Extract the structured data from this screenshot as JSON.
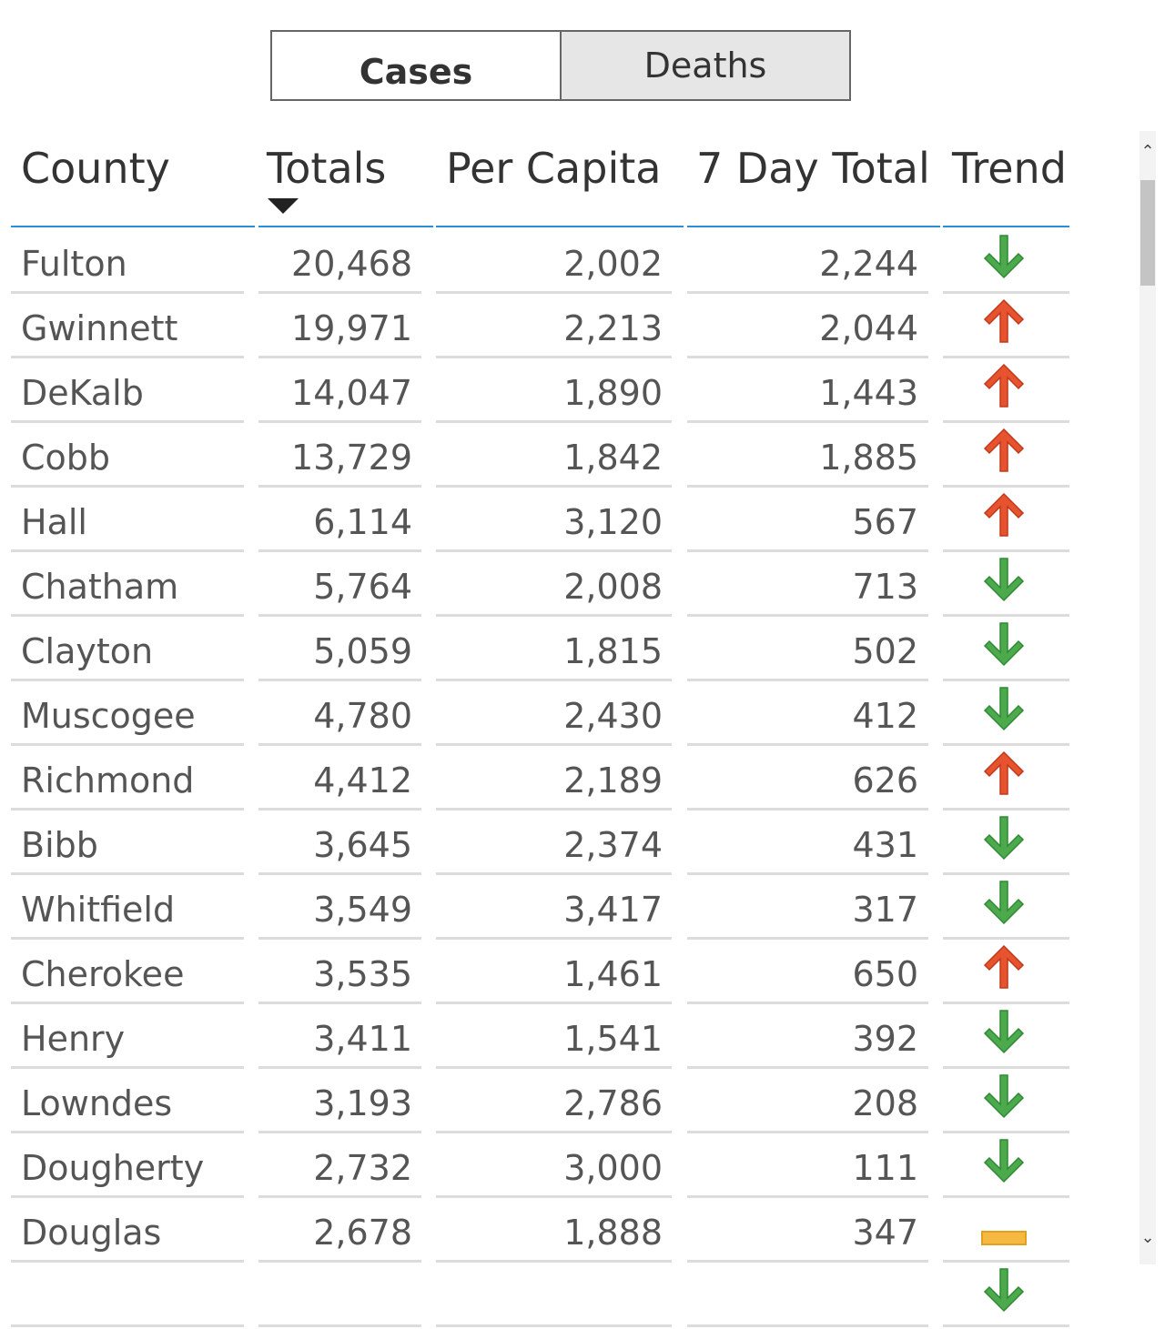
{
  "toggle": {
    "cases_label": "Cases",
    "deaths_label": "Deaths",
    "selected": "Cases"
  },
  "table": {
    "headers": [
      "County",
      "Totals",
      "Per Capita",
      "7 Day Total",
      "Trend"
    ],
    "sort_column": "Totals",
    "sort_direction": "descending",
    "rows": [
      {
        "county": "Fulton",
        "totals": "20,468",
        "per_capita": "2,002",
        "seven_day": "2,244",
        "trend": "down"
      },
      {
        "county": "Gwinnett",
        "totals": "19,971",
        "per_capita": "2,213",
        "seven_day": "2,044",
        "trend": "up"
      },
      {
        "county": "DeKalb",
        "totals": "14,047",
        "per_capita": "1,890",
        "seven_day": "1,443",
        "trend": "up"
      },
      {
        "county": "Cobb",
        "totals": "13,729",
        "per_capita": "1,842",
        "seven_day": "1,885",
        "trend": "up"
      },
      {
        "county": "Hall",
        "totals": "6,114",
        "per_capita": "3,120",
        "seven_day": "567",
        "trend": "up"
      },
      {
        "county": "Chatham",
        "totals": "5,764",
        "per_capita": "2,008",
        "seven_day": "713",
        "trend": "down"
      },
      {
        "county": "Clayton",
        "totals": "5,059",
        "per_capita": "1,815",
        "seven_day": "502",
        "trend": "down"
      },
      {
        "county": "Muscogee",
        "totals": "4,780",
        "per_capita": "2,430",
        "seven_day": "412",
        "trend": "down"
      },
      {
        "county": "Richmond",
        "totals": "4,412",
        "per_capita": "2,189",
        "seven_day": "626",
        "trend": "up"
      },
      {
        "county": "Bibb",
        "totals": "3,645",
        "per_capita": "2,374",
        "seven_day": "431",
        "trend": "down"
      },
      {
        "county": "Whitfield",
        "totals": "3,549",
        "per_capita": "3,417",
        "seven_day": "317",
        "trend": "down"
      },
      {
        "county": "Cherokee",
        "totals": "3,535",
        "per_capita": "1,461",
        "seven_day": "650",
        "trend": "up"
      },
      {
        "county": "Henry",
        "totals": "3,411",
        "per_capita": "1,541",
        "seven_day": "392",
        "trend": "down"
      },
      {
        "county": "Lowndes",
        "totals": "3,193",
        "per_capita": "2,786",
        "seven_day": "208",
        "trend": "down"
      },
      {
        "county": "Dougherty",
        "totals": "2,732",
        "per_capita": "3,000",
        "seven_day": "111",
        "trend": "down"
      },
      {
        "county": "Douglas",
        "totals": "2,678",
        "per_capita": "1,888",
        "seven_day": "347",
        "trend": "flat"
      },
      {
        "county": "",
        "totals": "",
        "per_capita": "",
        "seven_day": "",
        "trend": "down"
      }
    ]
  },
  "icons": {
    "up": "arrow-up-icon",
    "down": "arrow-down-icon",
    "flat": "flat-dash-icon"
  },
  "colors": {
    "up": "#e8532f",
    "down": "#4caa4c",
    "flat": "#f5b941",
    "header_rule": "#2b8fd6"
  }
}
